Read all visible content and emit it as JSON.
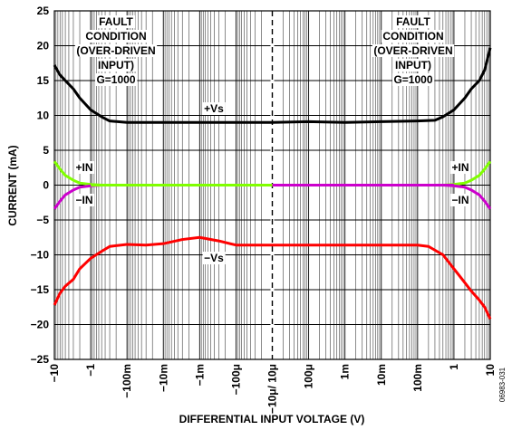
{
  "chart_data": {
    "type": "line",
    "xlabel": "DIFFERENTIAL INPUT VOLTAGE (V)",
    "ylabel": "CURRENT (mA)",
    "ylim": [
      -25,
      25
    ],
    "y_ticks": [
      "25",
      "20",
      "15",
      "10",
      "5",
      "0",
      "−5",
      "−10",
      "−15",
      "−20",
      "−25"
    ],
    "x_ticks": [
      "−10",
      "−1",
      "−100m",
      "−10m",
      "−1m",
      "−100μ",
      "−10μ/ 10μ",
      "100μ",
      "1m",
      "10m",
      "100m",
      "1",
      "10"
    ],
    "x_tick_values": [
      -10,
      -1,
      -0.1,
      -0.01,
      -0.001,
      -0.0001,
      1e-05,
      0.0001,
      0.001,
      0.01,
      0.1,
      1,
      10
    ],
    "grid": true,
    "series": [
      {
        "name": "+Vs",
        "color": "#000000",
        "x": [
          -10,
          -7,
          -5,
          -3,
          -2,
          -1,
          -0.5,
          -0.3,
          -0.1,
          -0.01,
          -0.001,
          -0.0001,
          1e-05,
          0.0001,
          0.001,
          0.01,
          0.1,
          0.3,
          0.5,
          1,
          2,
          3,
          5,
          7,
          10
        ],
        "y": [
          17.2,
          15.8,
          15.0,
          13.8,
          12.5,
          10.8,
          9.8,
          9.2,
          9.0,
          9.0,
          9.0,
          9.0,
          9.0,
          9.1,
          9.0,
          9.1,
          9.2,
          9.3,
          9.8,
          10.8,
          12.5,
          13.8,
          15.0,
          16.5,
          19.7
        ]
      },
      {
        "name": "−Vs",
        "color": "#ff0000",
        "x": [
          -10,
          -7,
          -5,
          -3,
          -2,
          -1,
          -0.5,
          -0.3,
          -0.1,
          -0.03,
          -0.01,
          -0.003,
          -0.001,
          -0.0003,
          -0.0001,
          1e-05,
          0.0001,
          0.001,
          0.01,
          0.1,
          0.2,
          0.5,
          1,
          2,
          3,
          5,
          7,
          10
        ],
        "y": [
          -17.2,
          -15.5,
          -14.5,
          -13.5,
          -12.0,
          -10.5,
          -9.5,
          -8.8,
          -8.5,
          -8.6,
          -8.4,
          -7.8,
          -7.5,
          -8.0,
          -8.6,
          -8.6,
          -8.6,
          -8.6,
          -8.6,
          -8.6,
          -8.8,
          -10.0,
          -12.0,
          -14.0,
          -15.2,
          -16.5,
          -17.5,
          -19.2
        ]
      },
      {
        "name": "+IN",
        "color": "#80ff00",
        "x": [
          -10,
          -7,
          -5,
          -3,
          -2,
          -1,
          -0.5,
          -0.1,
          -0.001,
          -1e-05
        ],
        "y": [
          3.4,
          2.3,
          1.4,
          0.7,
          0.3,
          0.1,
          0.0,
          0.0,
          0.0,
          0.0
        ],
        "x2": [
          1e-05,
          0.001,
          0.1,
          0.5,
          1,
          2,
          3,
          5,
          7,
          10
        ],
        "y2": [
          0.0,
          0.0,
          0.0,
          0.0,
          0.1,
          0.3,
          0.7,
          1.4,
          2.3,
          3.4
        ]
      },
      {
        "name": "−IN",
        "color": "#cc00cc",
        "x": [
          -10,
          -7,
          -5,
          -3,
          -2,
          -1,
          -0.5,
          -0.1,
          -0.001,
          -1e-05
        ],
        "y": [
          -3.4,
          -2.3,
          -1.4,
          -0.7,
          -0.3,
          -0.1,
          0.0,
          0.0,
          0.0,
          0.0
        ],
        "x2": [
          1e-05,
          0.001,
          0.1,
          0.5,
          1,
          2,
          3,
          5,
          7,
          10
        ],
        "y2": [
          0.0,
          0.0,
          0.0,
          0.0,
          -0.1,
          -0.3,
          -0.7,
          -1.4,
          -2.3,
          -3.4
        ]
      }
    ],
    "annotations": {
      "fault_left": [
        "FAULT",
        "CONDITION",
        "(OVER-DRIVEN",
        "INPUT)",
        "G=1000"
      ],
      "fault_right": [
        "FAULT",
        "CONDITION",
        "(OVER-DRIVEN",
        "INPUT)",
        "G=1000"
      ],
      "vs_pos": "+Vs",
      "vs_neg": "−Vs",
      "in_pos_left": "+IN",
      "in_neg_left": "−IN",
      "in_pos_right": "+IN",
      "in_neg_right": "−IN"
    },
    "figure_id": "06983-031"
  }
}
